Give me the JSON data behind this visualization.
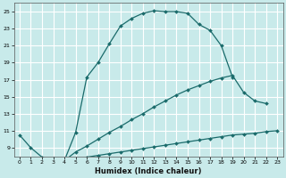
{
  "xlabel": "Humidex (Indice chaleur)",
  "background_color": "#c8eaea",
  "grid_color": "#ffffff",
  "line_color": "#1a6b6b",
  "xlim": [
    -0.5,
    23.5
  ],
  "ylim": [
    8,
    26
  ],
  "xticks": [
    0,
    1,
    2,
    3,
    4,
    5,
    6,
    7,
    8,
    9,
    10,
    11,
    12,
    13,
    14,
    15,
    16,
    17,
    18,
    19,
    20,
    21,
    22,
    23
  ],
  "yticks": [
    9,
    11,
    13,
    15,
    17,
    19,
    21,
    23,
    25
  ],
  "line1_x": [
    0,
    1,
    2,
    3,
    4,
    5,
    6,
    7,
    8,
    9,
    10,
    11,
    12,
    13,
    14,
    15,
    16,
    17,
    18,
    19
  ],
  "line1_y": [
    10.5,
    9.0,
    7.9,
    7.7,
    7.5,
    10.8,
    17.3,
    19.0,
    21.2,
    23.3,
    24.2,
    24.8,
    25.1,
    25.0,
    25.0,
    24.8,
    23.5,
    22.8,
    21.0,
    17.3
  ],
  "line2_x": [
    4,
    5,
    6,
    7,
    8,
    9,
    10,
    11,
    12,
    13,
    14,
    15,
    16,
    17,
    18,
    19,
    20,
    21,
    22
  ],
  "line2_y": [
    7.5,
    8.5,
    9.2,
    10.0,
    10.8,
    11.5,
    12.3,
    13.0,
    13.8,
    14.5,
    15.2,
    15.8,
    16.3,
    16.8,
    17.2,
    17.5,
    15.5,
    14.5,
    14.2
  ],
  "line3_x": [
    4,
    5,
    6,
    7,
    8,
    9,
    10,
    11,
    12,
    13,
    14,
    15,
    16,
    17,
    18,
    19,
    20,
    21,
    22,
    23
  ],
  "line3_y": [
    7.5,
    7.7,
    7.9,
    8.1,
    8.3,
    8.5,
    8.7,
    8.9,
    9.1,
    9.3,
    9.5,
    9.7,
    9.9,
    10.1,
    10.3,
    10.5,
    10.6,
    10.7,
    10.9,
    11.0
  ]
}
